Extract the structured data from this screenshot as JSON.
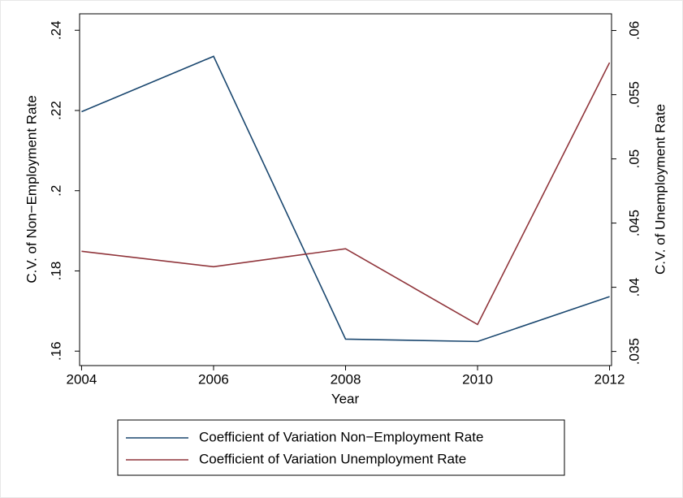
{
  "chart_data": {
    "type": "line",
    "x_label": "Year",
    "y_label": "C.V. of Non−Employment Rate",
    "y2_label": "C.V. of Unemployment Rate",
    "x": [
      2004,
      2006,
      2008,
      2010,
      2012
    ],
    "xlim": [
      2003.97,
      2012.03
    ],
    "xticks": [
      2004,
      2006,
      2008,
      2010,
      2012
    ],
    "ylim": [
      0.1564,
      0.2441
    ],
    "yticks": [
      {
        "value": 0.16,
        "label": ".16"
      },
      {
        "value": 0.18,
        "label": ".18"
      },
      {
        "value": 0.2,
        "label": ".2"
      },
      {
        "value": 0.22,
        "label": ".22"
      },
      {
        "value": 0.24,
        "label": ".24"
      }
    ],
    "y2lim": [
      0.0339,
      0.0613
    ],
    "y2ticks": [
      {
        "value": 0.035,
        "label": ".035"
      },
      {
        "value": 0.04,
        "label": ".04"
      },
      {
        "value": 0.045,
        "label": ".045"
      },
      {
        "value": 0.05,
        "label": ".05"
      },
      {
        "value": 0.055,
        "label": ".055"
      },
      {
        "value": 0.06,
        "label": ".06"
      }
    ],
    "grid": false,
    "legend": "bottom",
    "series": [
      {
        "name": "Coefficient of Variation Non−Employment Rate",
        "color": "#1a476f",
        "values": [
          0.2197,
          0.2335,
          0.163,
          0.1624,
          0.1736
        ]
      },
      {
        "name": "Coefficient of Variation Unemployment Rate",
        "color": "#90353b",
        "axis": "y2",
        "values": [
          0.0428,
          0.0416,
          0.043,
          0.0371,
          0.0575
        ]
      }
    ]
  }
}
